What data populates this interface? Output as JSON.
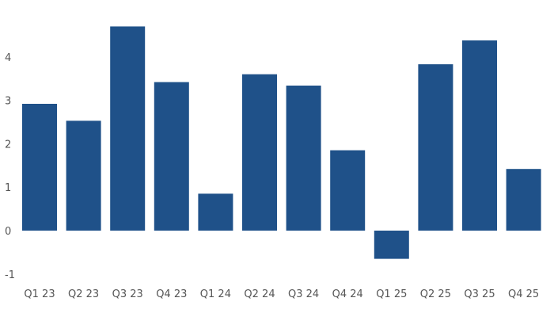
{
  "chart_data": {
    "type": "bar",
    "categories": [
      "Q1 23",
      "Q2 23",
      "Q3 23",
      "Q4 23",
      "Q1 24",
      "Q2 24",
      "Q3 24",
      "Q4 24",
      "Q1 25",
      "Q2 25",
      "Q3 25",
      "Q4 25"
    ],
    "values": [
      2.92,
      2.53,
      4.7,
      3.42,
      0.85,
      3.6,
      3.34,
      1.85,
      -0.65,
      3.83,
      4.38,
      1.42
    ],
    "yticks": [
      -1,
      0,
      1,
      2,
      3,
      4
    ],
    "ylim": [
      -1,
      4.8
    ],
    "title": "",
    "xlabel": "",
    "ylabel": "",
    "bar_color": "#1f5189",
    "grid": false,
    "legend": "none"
  }
}
